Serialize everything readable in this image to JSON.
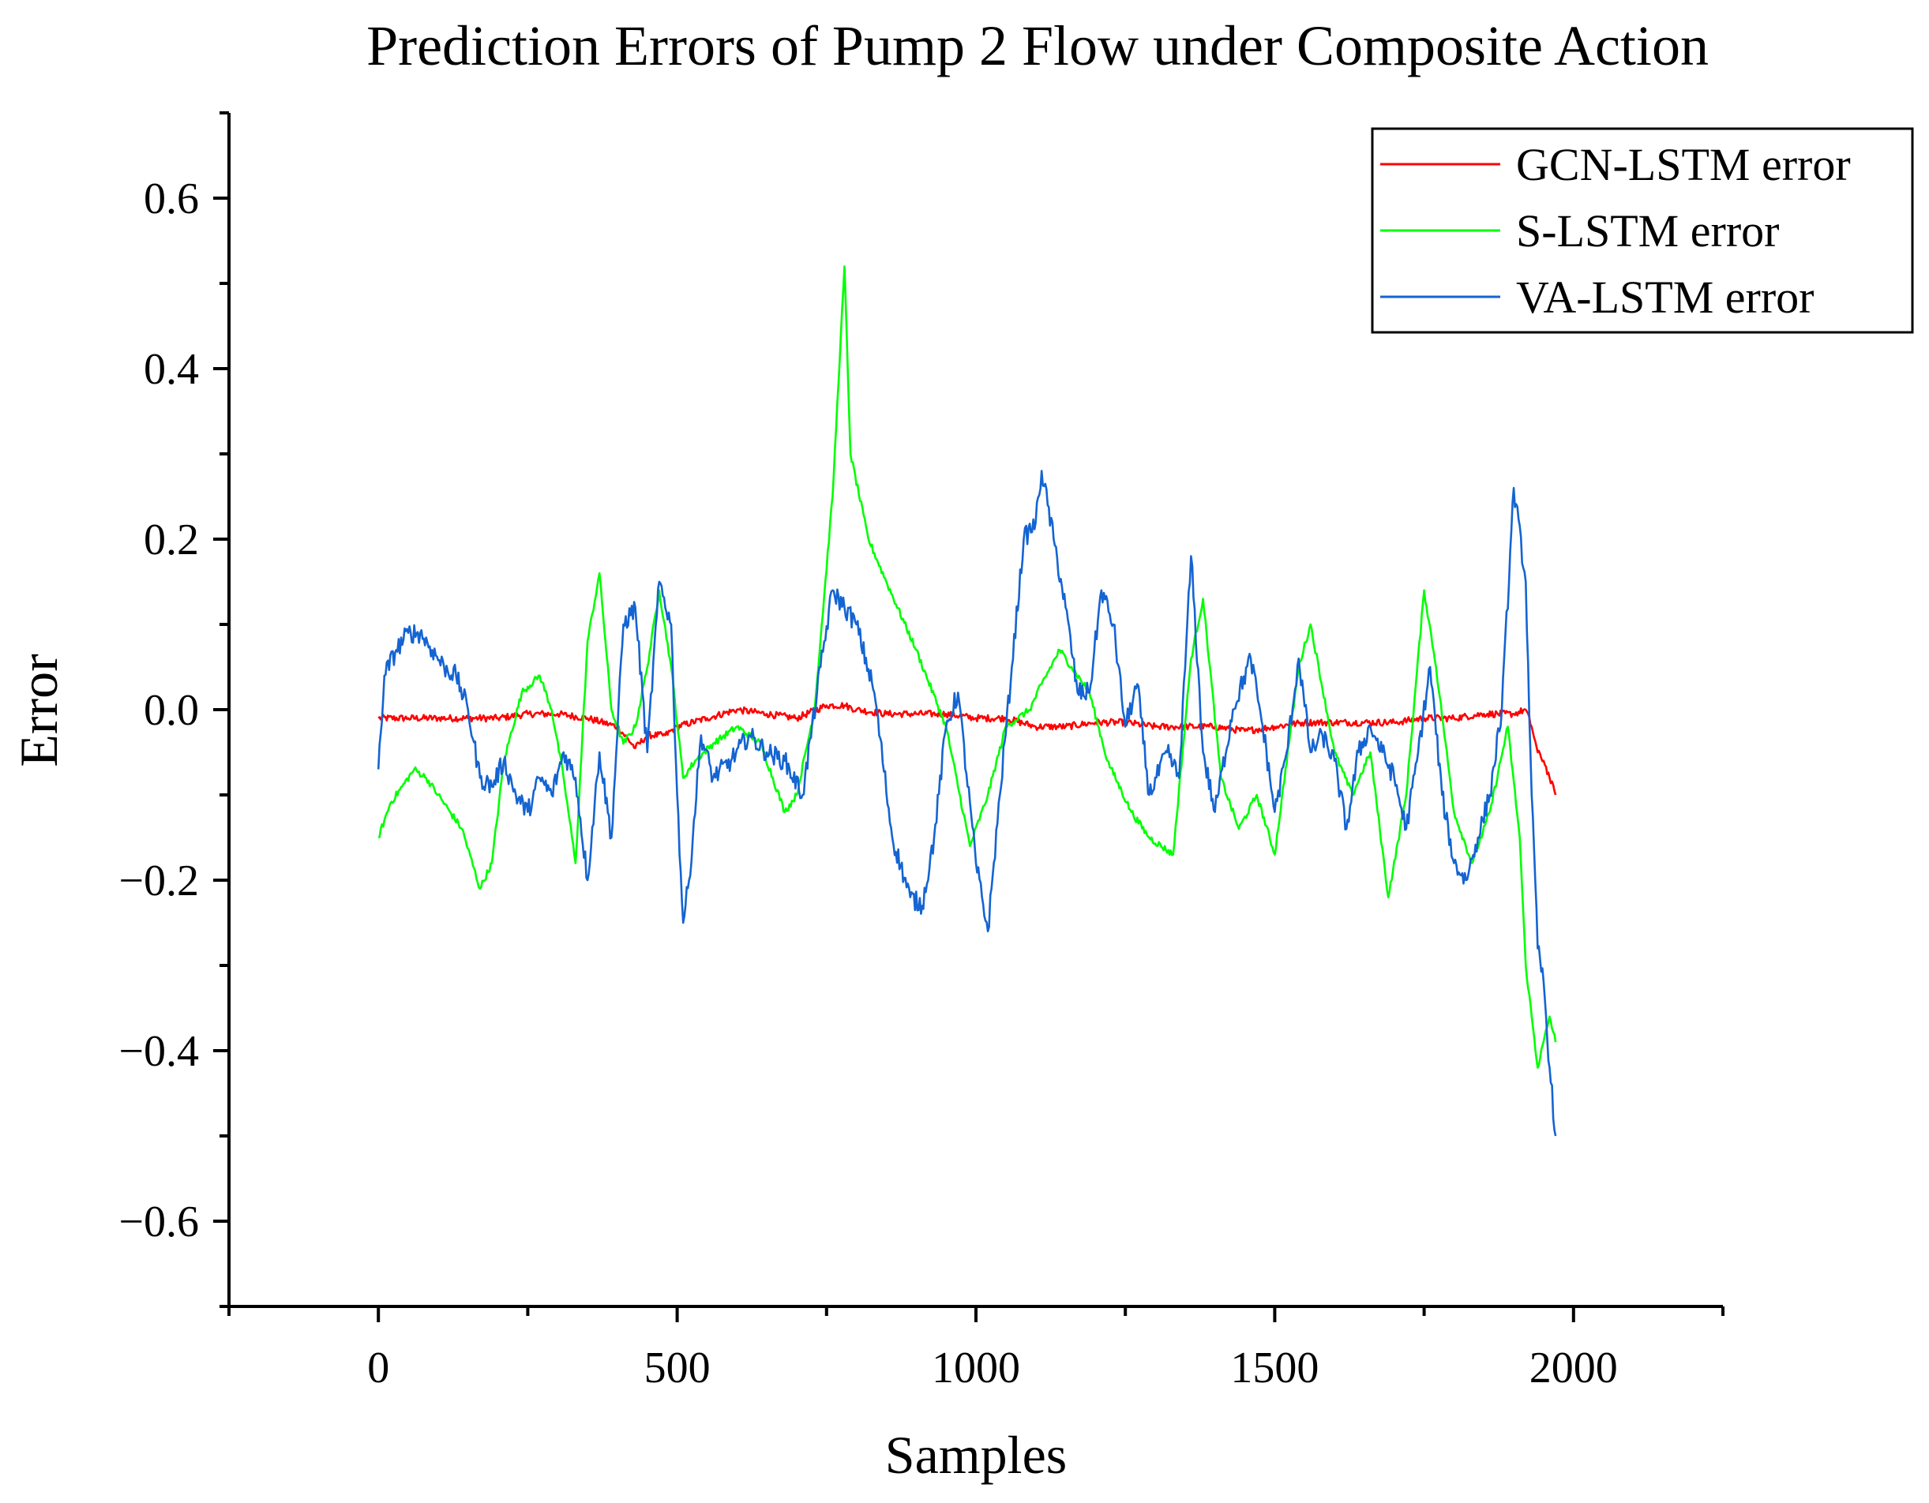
{
  "chart_data": {
    "type": "line",
    "title": "Prediction Errors of Pump 2 Flow under Composite Action",
    "xlabel": "Samples",
    "ylabel": "Error",
    "xlim": [
      -250,
      2250
    ],
    "ylim": [
      -0.7,
      0.7
    ],
    "xticks": [
      0,
      500,
      1000,
      1500,
      2000
    ],
    "xtick_labels": [
      "0",
      "500",
      "1000",
      "1500",
      "2000"
    ],
    "yticks": [
      0.6,
      0.4,
      0.2,
      0.0,
      -0.2,
      -0.4,
      -0.6
    ],
    "ytick_labels": [
      "0.6",
      "0.4",
      "0.2",
      "0.0",
      "−0.2",
      "−0.4",
      "−0.6"
    ],
    "grid": false,
    "legend_position": "top-right",
    "series": [
      {
        "name": "GCN-LSTM error",
        "color": "#ff0000",
        "x": [
          0,
          50,
          100,
          150,
          200,
          250,
          300,
          350,
          400,
          430,
          450,
          480,
          500,
          550,
          600,
          650,
          700,
          750,
          780,
          800,
          850,
          900,
          950,
          1000,
          1050,
          1100,
          1150,
          1200,
          1250,
          1300,
          1350,
          1400,
          1450,
          1500,
          1550,
          1600,
          1650,
          1700,
          1750,
          1800,
          1850,
          1900,
          1920,
          1930,
          1940,
          1950,
          1960,
          1970
        ],
        "y": [
          -0.01,
          -0.01,
          -0.01,
          -0.01,
          -0.01,
          -0.005,
          -0.005,
          -0.01,
          -0.02,
          -0.045,
          -0.03,
          -0.03,
          -0.02,
          -0.01,
          0.0,
          -0.005,
          -0.01,
          0.005,
          0.005,
          0.0,
          -0.005,
          -0.005,
          -0.005,
          -0.01,
          -0.01,
          -0.02,
          -0.02,
          -0.015,
          -0.015,
          -0.02,
          -0.02,
          -0.02,
          -0.025,
          -0.02,
          -0.015,
          -0.015,
          -0.015,
          -0.015,
          -0.01,
          -0.01,
          -0.005,
          -0.005,
          0.0,
          -0.02,
          -0.05,
          -0.06,
          -0.08,
          -0.1
        ]
      },
      {
        "name": "S-LSTM error",
        "color": "#00ff00",
        "x": [
          0,
          20,
          40,
          60,
          80,
          100,
          120,
          140,
          170,
          190,
          210,
          240,
          270,
          290,
          310,
          330,
          350,
          370,
          390,
          410,
          430,
          450,
          470,
          490,
          510,
          530,
          560,
          600,
          640,
          680,
          700,
          730,
          760,
          780,
          790,
          820,
          850,
          900,
          950,
          990,
          1020,
          1050,
          1090,
          1110,
          1140,
          1160,
          1190,
          1220,
          1260,
          1290,
          1330,
          1360,
          1380,
          1410,
          1440,
          1470,
          1500,
          1540,
          1560,
          1600,
          1630,
          1660,
          1690,
          1720,
          1750,
          1770,
          1800,
          1830,
          1860,
          1890,
          1910,
          1920,
          1940,
          1960,
          1970
        ],
        "y": [
          -0.15,
          -0.11,
          -0.09,
          -0.07,
          -0.08,
          -0.1,
          -0.12,
          -0.14,
          -0.21,
          -0.18,
          -0.06,
          0.02,
          0.04,
          0.0,
          -0.08,
          -0.18,
          0.08,
          0.16,
          0.0,
          -0.04,
          -0.02,
          0.05,
          0.14,
          0.05,
          -0.08,
          -0.06,
          -0.04,
          -0.02,
          -0.04,
          -0.12,
          -0.1,
          0.0,
          0.25,
          0.52,
          0.3,
          0.2,
          0.15,
          0.07,
          -0.02,
          -0.16,
          -0.1,
          -0.02,
          0.0,
          0.03,
          0.07,
          0.05,
          0.02,
          -0.06,
          -0.12,
          -0.15,
          -0.17,
          0.06,
          0.13,
          -0.08,
          -0.14,
          -0.1,
          -0.17,
          0.05,
          0.1,
          -0.05,
          -0.1,
          -0.05,
          -0.22,
          -0.1,
          0.14,
          0.05,
          -0.12,
          -0.18,
          -0.12,
          -0.02,
          -0.15,
          -0.3,
          -0.42,
          -0.36,
          -0.39
        ]
      },
      {
        "name": "VA-LSTM error",
        "color": "#1464d2",
        "x": [
          0,
          10,
          30,
          50,
          70,
          90,
          110,
          130,
          150,
          170,
          190,
          210,
          230,
          250,
          270,
          290,
          310,
          330,
          350,
          370,
          390,
          410,
          430,
          450,
          470,
          490,
          500,
          510,
          520,
          540,
          560,
          590,
          620,
          650,
          680,
          710,
          740,
          760,
          780,
          800,
          830,
          860,
          890,
          910,
          930,
          950,
          970,
          1000,
          1020,
          1040,
          1060,
          1080,
          1100,
          1110,
          1130,
          1150,
          1170,
          1190,
          1210,
          1230,
          1250,
          1270,
          1290,
          1320,
          1340,
          1360,
          1380,
          1400,
          1430,
          1460,
          1480,
          1500,
          1520,
          1540,
          1560,
          1580,
          1600,
          1620,
          1640,
          1660,
          1680,
          1700,
          1720,
          1740,
          1760,
          1780,
          1800,
          1820,
          1840,
          1860,
          1880,
          1900,
          1920,
          1930,
          1940,
          1950,
          1960,
          1970
        ],
        "y": [
          -0.07,
          0.04,
          0.07,
          0.09,
          0.09,
          0.07,
          0.05,
          0.04,
          0.0,
          -0.08,
          -0.09,
          -0.06,
          -0.1,
          -0.12,
          -0.08,
          -0.1,
          -0.05,
          -0.08,
          -0.2,
          -0.05,
          -0.15,
          0.1,
          0.12,
          -0.05,
          0.15,
          0.1,
          -0.1,
          -0.25,
          -0.2,
          -0.03,
          -0.08,
          -0.06,
          -0.03,
          -0.05,
          -0.06,
          -0.1,
          0.05,
          0.14,
          0.12,
          0.1,
          0.02,
          -0.15,
          -0.22,
          -0.23,
          -0.15,
          -0.02,
          0.02,
          -0.18,
          -0.26,
          -0.1,
          0.05,
          0.2,
          0.22,
          0.28,
          0.2,
          0.12,
          0.02,
          0.02,
          0.14,
          0.1,
          -0.02,
          0.03,
          -0.1,
          -0.05,
          -0.08,
          0.18,
          -0.05,
          -0.12,
          0.0,
          0.06,
          -0.02,
          -0.12,
          -0.05,
          0.06,
          -0.05,
          -0.03,
          -0.06,
          -0.14,
          -0.05,
          -0.02,
          -0.05,
          -0.08,
          -0.14,
          -0.05,
          0.05,
          -0.1,
          -0.18,
          -0.2,
          -0.15,
          -0.1,
          0.0,
          0.26,
          0.15,
          -0.1,
          -0.28,
          -0.32,
          -0.42,
          -0.5
        ]
      }
    ]
  }
}
